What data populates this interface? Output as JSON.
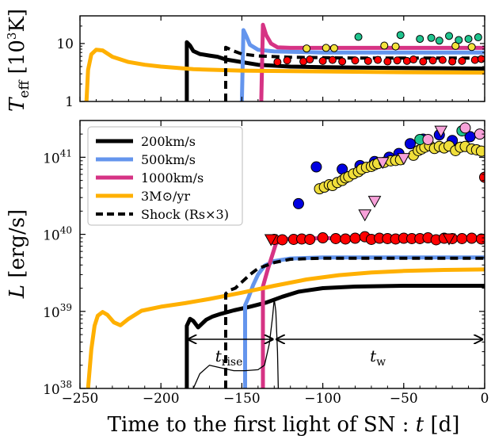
{
  "chart_data": [
    {
      "type": "line",
      "panel": "top",
      "ylabel_main": "T",
      "ylabel_sub": "eff",
      "ylabel_unit": "[10",
      "ylabel_exp": "3",
      "ylabel_close": "K]",
      "yscale": "log",
      "ylim": [
        1,
        30
      ],
      "xlim": [
        -250,
        0
      ],
      "yticks": [
        {
          "v": 1,
          "label": "1"
        },
        {
          "v": 10,
          "label": "10"
        }
      ],
      "series": [
        {
          "name": "200km/s",
          "color": "#000000",
          "style": "solid",
          "points": [
            [
              -184,
              1
            ],
            [
              -184,
              10.5
            ],
            [
              -182,
              9.2
            ],
            [
              -180,
              7.4
            ],
            [
              -176,
              6.6
            ],
            [
              -170,
              6.2
            ],
            [
              -165,
              5.9
            ],
            [
              -160,
              5.3
            ],
            [
              -140,
              4.3
            ],
            [
              -120,
              4.0
            ],
            [
              -100,
              3.9
            ],
            [
              -60,
              3.8
            ],
            [
              0,
              3.7
            ]
          ]
        },
        {
          "name": "500km/s",
          "color": "#6495ED",
          "style": "solid",
          "points": [
            [
              -150,
              1
            ],
            [
              -149,
              17
            ],
            [
              -147,
              13
            ],
            [
              -145,
              9.5
            ],
            [
              -140,
              7.8
            ],
            [
              -130,
              7.3
            ],
            [
              -100,
              7.0
            ],
            [
              0,
              7.0
            ]
          ]
        },
        {
          "name": "1000km/s",
          "color": "#D63384",
          "style": "solid",
          "points": [
            [
              -138,
              1
            ],
            [
              -137,
              21
            ],
            [
              -135,
              14
            ],
            [
              -132,
              10
            ],
            [
              -128,
              8.6
            ],
            [
              -120,
              8.4
            ],
            [
              -100,
              8.4
            ],
            [
              0,
              8.4
            ]
          ]
        },
        {
          "name": "3M⊙/yr",
          "color": "#FFB000",
          "style": "solid",
          "points": [
            [
              -246,
              1
            ],
            [
              -245,
              3.5
            ],
            [
              -243,
              6.5
            ],
            [
              -240,
              7.8
            ],
            [
              -236,
              7.6
            ],
            [
              -230,
              5.9
            ],
            [
              -220,
              4.8
            ],
            [
              -210,
              4.3
            ],
            [
              -200,
              4.0
            ],
            [
              -180,
              3.6
            ],
            [
              -150,
              3.4
            ],
            [
              -100,
              3.3
            ],
            [
              -50,
              3.2
            ],
            [
              0,
              3.15
            ]
          ]
        },
        {
          "name": "Shock",
          "color": "#000000",
          "style": "dashed",
          "points": [
            [
              -160,
              1
            ],
            [
              -160,
              8.6
            ],
            [
              -155,
              7.4
            ],
            [
              -150,
              6.6
            ],
            [
              -140,
              6.1
            ],
            [
              -120,
              5.8
            ],
            [
              -80,
              5.6
            ],
            [
              0,
              5.6
            ]
          ]
        }
      ],
      "markers": [
        {
          "color": "#FF0000",
          "x": [
            -128,
            -122,
            -112,
            -108,
            -100,
            -94,
            -88,
            -80,
            -72,
            -66,
            -60,
            -54,
            -48,
            -44,
            -38,
            -32,
            -26,
            -20,
            -14,
            -6,
            -2
          ],
          "y": [
            4.8,
            5.1,
            4.9,
            5.3,
            5.0,
            5.2,
            4.9,
            5.1,
            5.0,
            5.2,
            4.9,
            5.1,
            5.0,
            5.3,
            4.9,
            5.1,
            5.2,
            4.9,
            5.0,
            5.2,
            5.4
          ]
        },
        {
          "color": "#F4E23C",
          "x": [
            -110,
            -98,
            -93,
            -62,
            -55,
            -18,
            -8
          ],
          "y": [
            8.2,
            8.4,
            8.3,
            9.2,
            8.9,
            9.1,
            8.7
          ]
        },
        {
          "color": "#1FC48E",
          "x": [
            -78,
            -52,
            -40,
            -33,
            -28,
            -22,
            -16,
            -10,
            -4
          ],
          "y": [
            13,
            14,
            12,
            12.5,
            11.2,
            13.5,
            11.5,
            12,
            12.8
          ]
        }
      ]
    },
    {
      "type": "line",
      "panel": "bottom",
      "ylabel": "L [erg/s]",
      "xlabel": "Time to the first light of SN : t [d]",
      "yscale": "log",
      "ylim": [
        1e+38,
        3e+41
      ],
      "xlim": [
        -250,
        0
      ],
      "xticks": [
        {
          "v": -250,
          "label": "−250"
        },
        {
          "v": -200,
          "label": "−200"
        },
        {
          "v": -150,
          "label": "−150"
        },
        {
          "v": -100,
          "label": "−100"
        },
        {
          "v": -50,
          "label": "−50"
        },
        {
          "v": 0,
          "label": "0"
        }
      ],
      "yticks": [
        {
          "v": 1e+38,
          "base": "10",
          "exp": "38"
        },
        {
          "v": 1e+39,
          "base": "10",
          "exp": "39"
        },
        {
          "v": 1e+40,
          "base": "10",
          "exp": "40"
        },
        {
          "v": 1e+41,
          "base": "10",
          "exp": "41"
        }
      ],
      "legend": {
        "placement": "top-left",
        "entries": [
          {
            "label": "200km/s",
            "color": "#000000",
            "style": "solid"
          },
          {
            "label": "500km/s",
            "color": "#6495ED",
            "style": "solid"
          },
          {
            "label": "1000km/s",
            "color": "#D63384",
            "style": "solid"
          },
          {
            "label": "3M⊙/yr",
            "color": "#FFB000",
            "style": "solid"
          },
          {
            "label": "Shock (Rs×3)",
            "color": "#000000",
            "style": "dashed"
          }
        ]
      },
      "series": [
        {
          "name": "200km/s",
          "color": "#000000",
          "style": "solid",
          "points": [
            [
              -184,
              1e+38
            ],
            [
              -184,
              6.5e+38
            ],
            [
              -182,
              8e+38
            ],
            [
              -180,
              7.5e+38
            ],
            [
              -177,
              6.2e+38
            ],
            [
              -175,
              6.8e+38
            ],
            [
              -172,
              7.8e+38
            ],
            [
              -168,
              8.6e+38
            ],
            [
              -163,
              9.3e+38
            ],
            [
              -155,
              1.03e+39
            ],
            [
              -145,
              1.15e+39
            ],
            [
              -135,
              1.3e+39
            ],
            [
              -125,
              1.55e+39
            ],
            [
              -115,
              1.8e+39
            ],
            [
              -100,
              2e+39
            ],
            [
              -80,
              2.1e+39
            ],
            [
              -50,
              2.15e+39
            ],
            [
              0,
              2.15e+39
            ]
          ]
        },
        {
          "name": "500km/s",
          "color": "#6495ED",
          "style": "solid",
          "points": [
            [
              -148,
              1e+38
            ],
            [
              -148,
              1.2e+39
            ],
            [
              -146,
              1.5e+39
            ],
            [
              -143,
              2.2e+39
            ],
            [
              -140,
              3e+39
            ],
            [
              -136,
              3.9e+39
            ],
            [
              -130,
              4.5e+39
            ],
            [
              -120,
              4.85e+39
            ],
            [
              -100,
              5e+39
            ],
            [
              0,
              5e+39
            ]
          ]
        },
        {
          "name": "1000km/s",
          "color": "#D63384",
          "style": "solid",
          "points": [
            [
              -137,
              1e+38
            ],
            [
              -137,
              2.1e+39
            ],
            [
              -134,
              3.5e+39
            ],
            [
              -131,
              5.5e+39
            ],
            [
              -129,
              7.5e+39
            ],
            [
              -126,
              8.5e+39
            ],
            [
              -120,
              8.8e+39
            ],
            [
              -100,
              8.9e+39
            ],
            [
              0,
              8.9e+39
            ]
          ]
        },
        {
          "name": "3M⊙/yr",
          "color": "#FFB000",
          "style": "solid",
          "points": [
            [
              -245,
              1e+38
            ],
            [
              -243,
              3.2e+38
            ],
            [
              -241,
              6.5e+38
            ],
            [
              -239,
              8.8e+38
            ],
            [
              -236,
              9.8e+38
            ],
            [
              -233,
              9e+38
            ],
            [
              -229,
              7.2e+38
            ],
            [
              -225,
              6.6e+38
            ],
            [
              -220,
              8e+38
            ],
            [
              -212,
              1.02e+39
            ],
            [
              -200,
              1.15e+39
            ],
            [
              -185,
              1.28e+39
            ],
            [
              -170,
              1.45e+39
            ],
            [
              -150,
              1.75e+39
            ],
            [
              -130,
              2.15e+39
            ],
            [
              -110,
              2.6e+39
            ],
            [
              -90,
              2.95e+39
            ],
            [
              -70,
              3.2e+39
            ],
            [
              -50,
              3.35e+39
            ],
            [
              -25,
              3.45e+39
            ],
            [
              0,
              3.5e+39
            ]
          ]
        },
        {
          "name": "Shock",
          "color": "#000000",
          "style": "dashed",
          "points": [
            [
              -160,
              1e+38
            ],
            [
              -160,
              1.7e+39
            ],
            [
              -157,
              1.9e+39
            ],
            [
              -154,
              2e+39
            ],
            [
              -150,
              2.4e+39
            ],
            [
              -145,
              3e+39
            ],
            [
              -140,
              3.6e+39
            ],
            [
              -130,
              4.3e+39
            ],
            [
              -120,
              4.75e+39
            ],
            [
              -100,
              4.9e+39
            ],
            [
              0,
              4.9e+39
            ]
          ]
        },
        {
          "name": "",
          "color": "#000000",
          "style": "thin",
          "points": [
            [
              -180,
              1e+38
            ],
            [
              -176,
              1.55e+38
            ],
            [
              -170,
              2e+38
            ],
            [
              -163,
              1.85e+38
            ],
            [
              -155,
              1.7e+38
            ],
            [
              -148,
              1.7e+38
            ],
            [
              -140,
              1.75e+38
            ],
            [
              -136,
              2e+38
            ],
            [
              -133,
              3.8e+38
            ],
            [
              -131,
              8.5e+38
            ],
            [
              -130,
              1.45e+39
            ],
            [
              -129,
              1e+39
            ],
            [
              -128,
              3e+38
            ],
            [
              -127.5,
              1e+38
            ]
          ]
        }
      ],
      "markers": [
        {
          "color": "#FF0000",
          "shape": "circle",
          "x": [
            -130,
            -125,
            -118,
            -113,
            -108,
            -100,
            -92,
            -86,
            -80,
            -74,
            -70,
            -65,
            -60,
            -55,
            -50,
            -45,
            -40,
            -35,
            -30,
            -25,
            -20,
            -14,
            -8,
            -2
          ],
          "y": [
            8.6e+39,
            8.5e+39,
            8.6e+39,
            8.7e+39,
            8.6e+39,
            9e+39,
            8.8e+39,
            8.7e+39,
            8.9e+39,
            9.3e+39,
            8.6e+39,
            8.9e+39,
            8.8e+39,
            8.7e+39,
            8.9e+39,
            8.8e+39,
            8.8e+39,
            9e+39,
            8.5e+39,
            8.9e+39,
            8.8e+39,
            8.8e+39,
            8.9e+39,
            8.7e+39
          ]
        },
        {
          "color": "#FF0000",
          "shape": "triangle",
          "x": [
            -132,
            -22
          ],
          "y": [
            8.6e+39,
            8.8e+39
          ]
        },
        {
          "color": "#0000E0",
          "shape": "circle",
          "x": [
            -115,
            -104,
            -88,
            -77,
            -68,
            -59,
            -53,
            -46,
            -38,
            -28,
            -20,
            -9
          ],
          "y": [
            2.5e+40,
            7.5e+40,
            7e+40,
            7.8e+40,
            8.8e+40,
            1e+41,
            1.12e+41,
            1.5e+41,
            1.72e+41,
            1.95e+41,
            1.65e+41,
            1.85e+41
          ]
        },
        {
          "color": "#F0DE3A",
          "shape": "circle",
          "x": [
            -102,
            -99,
            -96,
            -94,
            -91,
            -88,
            -86,
            -84,
            -81,
            -78,
            -76,
            -73,
            -70,
            -68,
            -66,
            -62,
            -58,
            -55,
            -52,
            -44,
            -41,
            -39,
            -37,
            -34,
            -31,
            -28,
            -25,
            -22,
            -18,
            -15,
            -12,
            -8,
            -5,
            -2
          ],
          "y": [
            3.9e+40,
            4.1e+40,
            4.4e+40,
            4.3e+40,
            4.7e+40,
            5e+40,
            5.4e+40,
            5.6e+40,
            6.1e+40,
            6.5e+40,
            7e+40,
            7.4e+40,
            7.6e+40,
            8e+40,
            8.3e+40,
            8.6e+40,
            9e+40,
            9.1e+40,
            9.3e+40,
            1.06e+41,
            1.22e+41,
            1.28e+41,
            1.35e+41,
            1.41e+41,
            1.3e+41,
            1.38e+41,
            1.32e+41,
            1.4e+41,
            1.22e+41,
            1.35e+41,
            1.38e+41,
            1.28e+41,
            1.25e+41,
            1.2e+41
          ]
        },
        {
          "color": "#1FC48E",
          "shape": "circle",
          "x": [
            -40,
            -14
          ],
          "y": [
            1.7e+41,
            2.2e+41
          ]
        },
        {
          "color": "#F7A1D9",
          "shape": "circle",
          "x": [
            -35,
            -12,
            -3
          ],
          "y": [
            1.7e+41,
            2.4e+41,
            2e+41
          ]
        },
        {
          "color": "#F7A1D9",
          "shape": "triangle",
          "x": [
            -74,
            -68,
            -63,
            -50,
            -27
          ],
          "y": [
            1.8e+40,
            2.7e+40,
            8.6e+40,
            9.7e+40,
            2.2e+41
          ]
        },
        {
          "color": "#FF0000",
          "shape": "circle",
          "x": [
            0
          ],
          "y": [
            5.5e+40
          ]
        }
      ],
      "annotations": [
        {
          "symbol": "t",
          "sub": "rise",
          "x": -158
        },
        {
          "symbol": "t",
          "sub": "w",
          "x": -66
        }
      ]
    }
  ]
}
